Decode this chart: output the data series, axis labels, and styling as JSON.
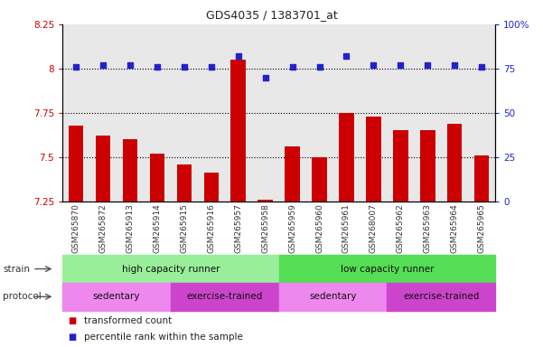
{
  "title": "GDS4035 / 1383701_at",
  "samples": [
    "GSM265870",
    "GSM265872",
    "GSM265913",
    "GSM265914",
    "GSM265915",
    "GSM265916",
    "GSM265957",
    "GSM265958",
    "GSM265959",
    "GSM265960",
    "GSM265961",
    "GSM268007",
    "GSM265962",
    "GSM265963",
    "GSM265964",
    "GSM265965"
  ],
  "bar_values": [
    7.68,
    7.62,
    7.6,
    7.52,
    7.46,
    7.41,
    8.05,
    7.26,
    7.56,
    7.5,
    7.75,
    7.73,
    7.65,
    7.65,
    7.69,
    7.51
  ],
  "dot_values": [
    76,
    77,
    77,
    76,
    76,
    76,
    82,
    70,
    76,
    76,
    82,
    77,
    77,
    77,
    77,
    76
  ],
  "bar_color": "#cc0000",
  "dot_color": "#2222cc",
  "ylim_left": [
    7.25,
    8.25
  ],
  "ylim_right": [
    0,
    100
  ],
  "yticks_left": [
    7.25,
    7.5,
    7.75,
    8.0,
    8.25
  ],
  "yticks_right": [
    0,
    25,
    50,
    75,
    100
  ],
  "ytick_labels_left": [
    "7.25",
    "7.5",
    "7.75",
    "8",
    "8.25"
  ],
  "ytick_labels_right": [
    "0",
    "25",
    "50",
    "75",
    "100%"
  ],
  "grid_lines": [
    7.5,
    7.75,
    8.0
  ],
  "strain_groups": [
    {
      "label": "high capacity runner",
      "start": 0,
      "end": 8,
      "color": "#99ee99"
    },
    {
      "label": "low capacity runner",
      "start": 8,
      "end": 16,
      "color": "#55dd55"
    }
  ],
  "protocol_groups": [
    {
      "label": "sedentary",
      "start": 0,
      "end": 4,
      "color": "#ee88ee"
    },
    {
      "label": "exercise-trained",
      "start": 4,
      "end": 8,
      "color": "#cc44cc"
    },
    {
      "label": "sedentary",
      "start": 8,
      "end": 12,
      "color": "#ee88ee"
    },
    {
      "label": "exercise-trained",
      "start": 12,
      "end": 16,
      "color": "#cc44cc"
    }
  ],
  "legend_bar_label": "transformed count",
  "legend_dot_label": "percentile rank within the sample",
  "strain_label": "strain",
  "protocol_label": "protocol",
  "background_color": "#ffffff",
  "plot_bg_color": "#e8e8e8",
  "bar_width": 0.55,
  "title_fontsize": 9,
  "tick_label_fontsize": 7.5,
  "sample_label_fontsize": 6.5,
  "annotation_fontsize": 7.5,
  "legend_fontsize": 7.5
}
